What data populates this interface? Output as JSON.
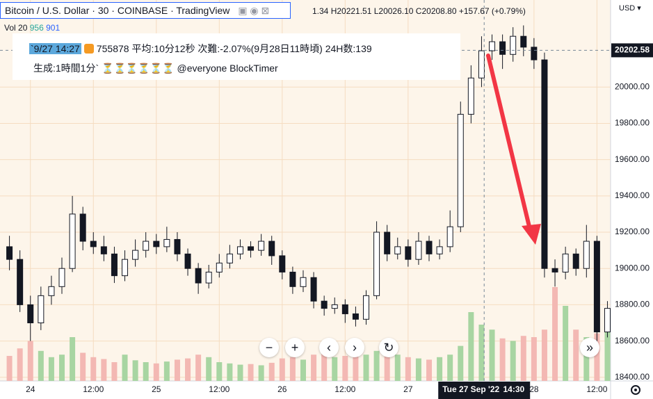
{
  "header": {
    "title": "Bitcoin / U.S. Dollar · 30 · COINBASE · TradingView",
    "ohlc": "1.34 H20221.51 L20026.10 C20208.80 +157.67 (+0.79%)",
    "volume_label": "Vol 20",
    "volume_value": "956",
    "volume_ma": "901",
    "currency": "USD"
  },
  "overlay": {
    "stamp": "`9/27 14:27",
    "line1": "755878 平均:10分12秒 次難:-2.07%(9月28日11時頃) 24H数:139",
    "line2": "生成:1時間1分` ⏳⏳⏳⏳⏳⏳ @everyone BlockTimer"
  },
  "chart_data": {
    "type": "candlestick",
    "x": [
      -4,
      -2,
      0,
      2,
      4,
      6,
      8,
      10,
      12,
      14,
      16,
      18,
      20,
      22,
      24,
      26,
      28,
      30,
      32,
      34,
      36,
      38,
      40,
      42,
      44,
      46,
      48,
      50,
      52,
      54,
      56,
      58,
      60,
      62,
      64,
      66,
      68,
      70,
      72,
      74,
      76,
      78,
      80,
      82,
      84,
      86,
      88,
      90,
      92,
      94,
      96,
      98,
      100,
      102,
      104,
      106,
      108,
      110
    ],
    "open": [
      19120,
      19050,
      18800,
      18700,
      18850,
      18900,
      19000,
      19300,
      19150,
      19120,
      19080,
      18960,
      19050,
      19100,
      19150,
      19120,
      19160,
      19080,
      19000,
      18920,
      18980,
      19030,
      19080,
      19120,
      19100,
      19150,
      19070,
      18980,
      18900,
      18950,
      18820,
      18780,
      18800,
      18750,
      18720,
      18850,
      19200,
      19080,
      19120,
      19050,
      19150,
      19080,
      19120,
      19230,
      19850,
      20050,
      20200,
      20250,
      20180,
      20280,
      20220,
      20150,
      19000,
      18980,
      19080,
      19000,
      19150,
      18650
    ],
    "high": [
      19180,
      19100,
      18850,
      18900,
      18960,
      19060,
      19400,
      19340,
      19200,
      19180,
      19120,
      19100,
      19160,
      19200,
      19190,
      19230,
      19200,
      19110,
      19030,
      19020,
      19080,
      19130,
      19160,
      19150,
      19190,
      19180,
      19100,
      19010,
      18990,
      18980,
      18850,
      18840,
      18830,
      18790,
      18880,
      19260,
      19240,
      19170,
      19160,
      19200,
      19180,
      19160,
      19320,
      19920,
      20120,
      20280,
      20290,
      20290,
      20330,
      20340,
      20270,
      20190,
      19050,
      19120,
      19110,
      19240,
      19180,
      18820
    ],
    "low": [
      18990,
      18760,
      18600,
      18660,
      18800,
      18860,
      18980,
      19100,
      19080,
      19040,
      18920,
      18930,
      19010,
      19060,
      19080,
      19090,
      19040,
      18960,
      18860,
      18890,
      18950,
      19000,
      19050,
      19060,
      19070,
      19020,
      18940,
      18860,
      18870,
      18780,
      18740,
      18750,
      18700,
      18680,
      18690,
      18830,
      19040,
      19050,
      19010,
      19020,
      19040,
      19050,
      19090,
      19200,
      19800,
      20000,
      20150,
      20100,
      20140,
      20170,
      20100,
      18950,
      18900,
      18940,
      18960,
      18950,
      18580,
      18620
    ],
    "close": [
      19050,
      18800,
      18700,
      18850,
      18900,
      19000,
      19300,
      19150,
      19120,
      19080,
      18960,
      19050,
      19100,
      19150,
      19120,
      19160,
      19080,
      19000,
      18920,
      18980,
      19030,
      19080,
      19120,
      19100,
      19150,
      19070,
      18980,
      18900,
      18950,
      18820,
      18780,
      18800,
      18750,
      18720,
      18850,
      19200,
      19080,
      19120,
      19050,
      19150,
      19080,
      19120,
      19230,
      19850,
      20050,
      20200,
      20250,
      20180,
      20280,
      20220,
      20150,
      19000,
      18980,
      19080,
      19000,
      19150,
      18650,
      18780
    ],
    "volume": [
      400,
      520,
      640,
      480,
      380,
      420,
      700,
      450,
      380,
      350,
      300,
      420,
      330,
      300,
      280,
      310,
      340,
      360,
      420,
      380,
      300,
      280,
      260,
      270,
      250,
      290,
      360,
      380,
      340,
      420,
      460,
      380,
      400,
      460,
      420,
      480,
      620,
      420,
      380,
      360,
      340,
      380,
      420,
      560,
      1100,
      900,
      820,
      680,
      640,
      720,
      700,
      820,
      1500,
      1200,
      820,
      700,
      760,
      956
    ],
    "xlim": [
      -5.8,
      110.6
    ],
    "ylim": [
      18380,
      20480
    ],
    "xticks": [
      {
        "value": 0,
        "label": "24"
      },
      {
        "value": 12,
        "label": "12:00"
      },
      {
        "value": 24,
        "label": "25"
      },
      {
        "value": 36,
        "label": "12:00"
      },
      {
        "value": 48,
        "label": "26"
      },
      {
        "value": 60,
        "label": "12:00"
      },
      {
        "value": 72,
        "label": "27"
      },
      {
        "value": 96,
        "label": "28"
      },
      {
        "value": 108,
        "label": "12:00"
      }
    ],
    "yticks": [
      {
        "value": 18400,
        "label": "18400.00"
      },
      {
        "value": 18600,
        "label": "18600.00"
      },
      {
        "value": 18800,
        "label": "18800.00"
      },
      {
        "value": 19000,
        "label": "19000.00"
      },
      {
        "value": 19200,
        "label": "19200.00"
      },
      {
        "value": 19400,
        "label": "19400.00"
      },
      {
        "value": 19600,
        "label": "19600.00"
      },
      {
        "value": 19800,
        "label": "19800.00"
      },
      {
        "value": 20000,
        "label": "20000.00"
      }
    ],
    "grid": true,
    "up_color": "#ffffff",
    "down_color": "#131722",
    "volume_up_color": "#a8d5a2",
    "volume_down_color": "#f3b8b3",
    "crosshair": {
      "x": 86.5,
      "y": 20202.58,
      "date": "Tue 27 Sep '22",
      "time": "14:30"
    }
  }
}
